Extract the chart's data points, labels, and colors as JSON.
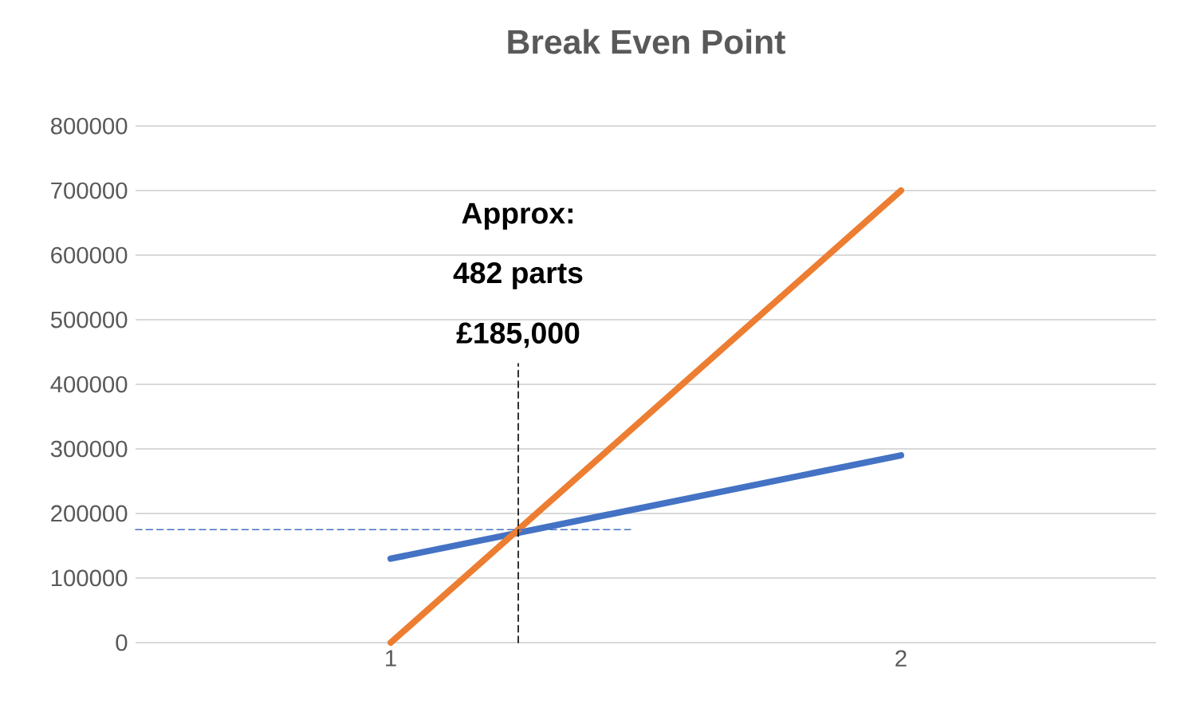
{
  "chart_data": {
    "type": "line",
    "title": "Break Even Point",
    "xlim": [
      0.5,
      2.5
    ],
    "xticks": [
      1,
      2
    ],
    "ylim": [
      0,
      800000
    ],
    "yticks": [
      0,
      100000,
      200000,
      300000,
      400000,
      500000,
      600000,
      700000,
      800000
    ],
    "grid": "y",
    "marker": "none",
    "series": [
      {
        "color": "#4472c4",
        "x": [
          1,
          2
        ],
        "values": [
          130000,
          290000
        ],
        "line_style": "solid"
      },
      {
        "color": "#ed7d31",
        "x": [
          1,
          2
        ],
        "values": [
          0,
          700000
        ],
        "line_style": "solid"
      },
      {
        "color": "#4472c4",
        "x": [
          0.5,
          1.47
        ],
        "values": [
          175000,
          175000
        ],
        "line_style": "dashed"
      },
      {
        "color": "#000000",
        "x": [
          1.25,
          1.25
        ],
        "values": [
          0,
          432000
        ],
        "line_style": "dashed"
      }
    ],
    "annotations": [
      "Approx:",
      "482 parts",
      "£185,000"
    ]
  }
}
